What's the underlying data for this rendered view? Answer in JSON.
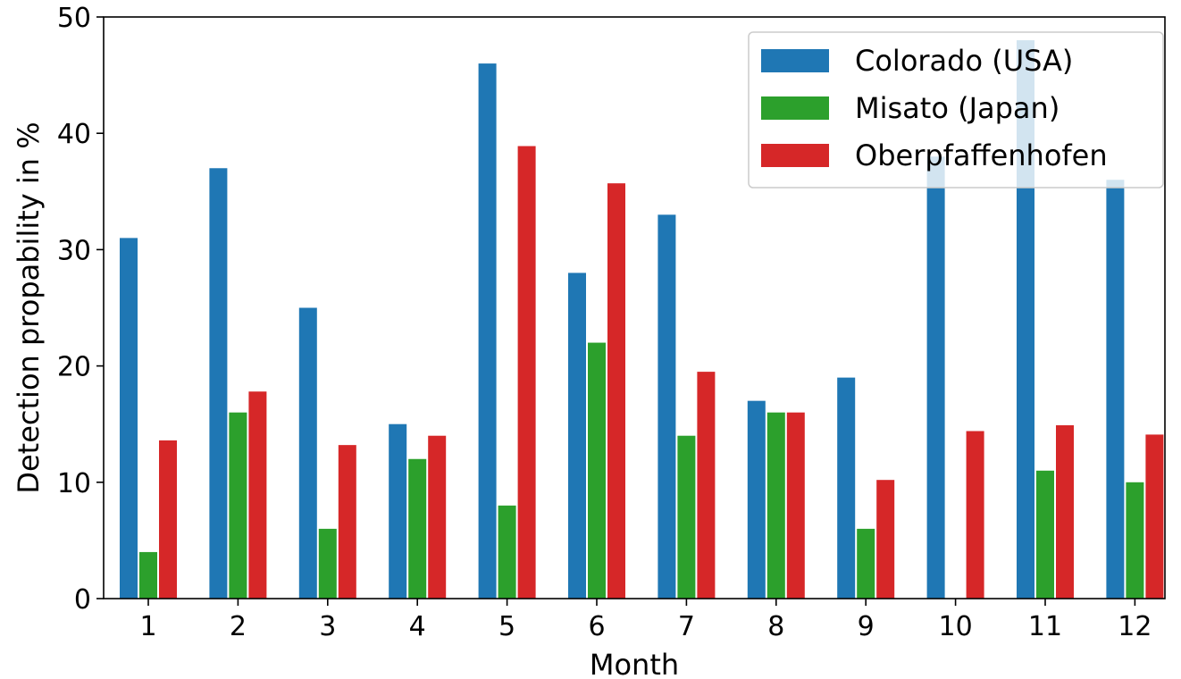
{
  "chart_data": {
    "type": "bar",
    "title": "",
    "xlabel": "Month",
    "ylabel": "Detection propability in %",
    "categories": [
      "1",
      "2",
      "3",
      "4",
      "5",
      "6",
      "7",
      "8",
      "9",
      "10",
      "11",
      "12"
    ],
    "ylim": [
      0,
      50
    ],
    "yticks": [
      "0",
      "10",
      "20",
      "30",
      "40",
      "50"
    ],
    "grid": false,
    "legend_position": "top-right",
    "series": [
      {
        "name": "Colorado (USA)",
        "color": "#1f77b4",
        "values": [
          31,
          37,
          25,
          15,
          46,
          28,
          33,
          17,
          19,
          38,
          48,
          36
        ]
      },
      {
        "name": "Misato (Japan)",
        "color": "#2ca02c",
        "values": [
          4,
          16,
          6,
          12,
          8,
          22,
          14,
          16,
          6,
          0,
          11,
          10
        ]
      },
      {
        "name": "Oberpfaffenhofen",
        "color": "#d62728",
        "values": [
          13.6,
          17.8,
          13.2,
          14,
          38.9,
          35.7,
          19.5,
          16,
          10.2,
          14.4,
          14.9,
          14.1
        ]
      }
    ]
  }
}
